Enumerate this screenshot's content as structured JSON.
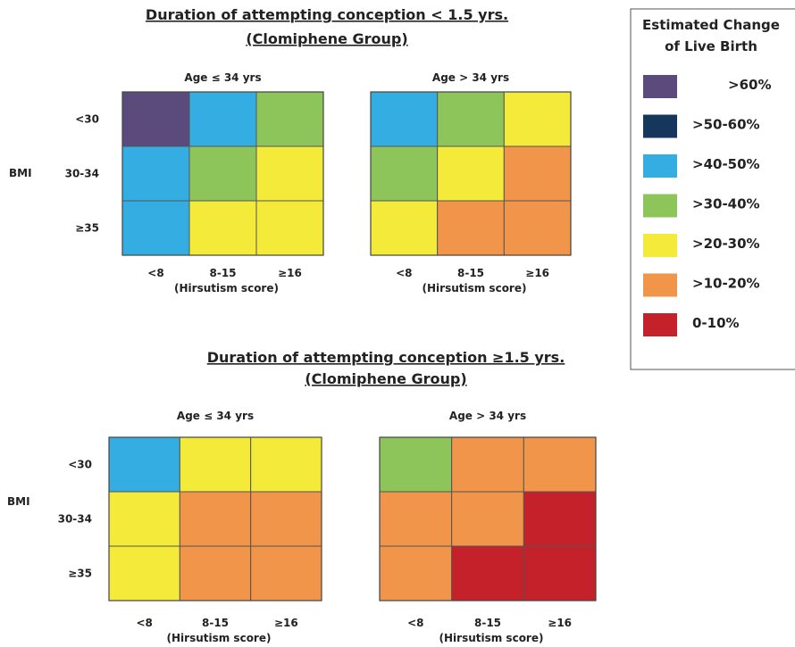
{
  "chart_data": [
    {
      "type": "heatmap",
      "title": "Duration of attempting conception < 1.5 yrs.",
      "subtitle": "(Clomiphene Group)",
      "panels": [
        {
          "title": "Age ≤ 34 yrs",
          "ylabel": "BMI",
          "row_labels": [
            "<30",
            "30-34",
            "≥35"
          ],
          "col_labels": [
            "<8",
            "8-15",
            "≥16"
          ],
          "xlabel": "(Hirsutism score)",
          "cells": [
            [
              ">60%",
              ">40-50%",
              ">30-40%"
            ],
            [
              ">40-50%",
              ">30-40%",
              ">20-30%"
            ],
            [
              ">40-50%",
              ">20-30%",
              ">20-30%"
            ]
          ]
        },
        {
          "title": "Age > 34 yrs",
          "ylabel": "",
          "row_labels": [
            "",
            "",
            ""
          ],
          "col_labels": [
            "<8",
            "8-15",
            "≥16"
          ],
          "xlabel": "(Hirsutism score)",
          "cells": [
            [
              ">40-50%",
              ">30-40%",
              ">20-30%"
            ],
            [
              ">30-40%",
              ">20-30%",
              ">10-20%"
            ],
            [
              ">20-30%",
              ">10-20%",
              ">10-20%"
            ]
          ]
        }
      ]
    },
    {
      "type": "heatmap",
      "title": "Duration of attempting conception ≥1.5 yrs.",
      "subtitle": "(Clomiphene Group)",
      "panels": [
        {
          "title": "Age ≤ 34 yrs",
          "ylabel": "BMI",
          "row_labels": [
            "<30",
            "30-34",
            "≥35"
          ],
          "col_labels": [
            "<8",
            "8-15",
            "≥16"
          ],
          "xlabel": "(Hirsutism score)",
          "cells": [
            [
              ">40-50%",
              ">20-30%",
              ">20-30%"
            ],
            [
              ">20-30%",
              ">10-20%",
              ">10-20%"
            ],
            [
              ">20-30%",
              ">10-20%",
              ">10-20%"
            ]
          ]
        },
        {
          "title": "Age > 34 yrs",
          "ylabel": "",
          "row_labels": [
            "",
            "",
            ""
          ],
          "col_labels": [
            "<8",
            "8-15",
            "≥16"
          ],
          "xlabel": "(Hirsutism score)",
          "cells": [
            [
              ">30-40%",
              ">10-20%",
              ">10-20%"
            ],
            [
              ">10-20%",
              ">10-20%",
              "0-10%"
            ],
            [
              ">10-20%",
              "0-10%",
              "0-10%"
            ]
          ]
        }
      ]
    }
  ],
  "legend": {
    "title_lines": [
      "Estimated Change",
      "of Live Birth"
    ],
    "position": "right",
    "items": [
      {
        "label": ">60%",
        "color": "#5b4a7c"
      },
      {
        "label": ">50-60%",
        "color": "#16365c"
      },
      {
        "label": ">40-50%",
        "color": "#34ade2"
      },
      {
        "label": ">30-40%",
        "color": "#8dc55a"
      },
      {
        "label": ">20-30%",
        "color": "#f4ea3a"
      },
      {
        "label": ">10-20%",
        "color": "#f0954a"
      },
      {
        "label": "0-10%",
        "color": "#c5212a"
      }
    ]
  }
}
